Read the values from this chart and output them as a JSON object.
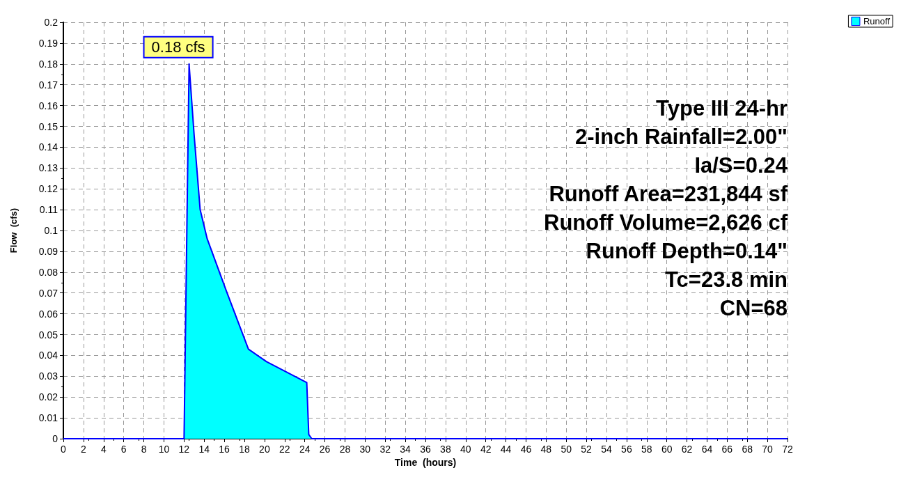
{
  "chart_data": {
    "type": "area",
    "xlabel": "Time  (hours)",
    "ylabel": "Flow  (cfs)",
    "x": [
      0,
      12,
      12.5,
      13.0,
      13.6,
      14.3,
      16.2,
      18.4,
      20.2,
      24.2,
      24.4,
      24.7,
      72
    ],
    "series": [
      {
        "name": "Runoff",
        "color": "#00ffff",
        "values": [
          0,
          0,
          0.18,
          0.146,
          0.11,
          0.096,
          0.071,
          0.043,
          0.037,
          0.027,
          0.002,
          0,
          0
        ]
      }
    ],
    "xlim": [
      0,
      72
    ],
    "xticks": [
      0,
      2,
      4,
      6,
      8,
      10,
      12,
      14,
      16,
      18,
      20,
      22,
      24,
      26,
      28,
      30,
      32,
      34,
      36,
      38,
      40,
      42,
      44,
      46,
      48,
      50,
      52,
      54,
      56,
      58,
      60,
      62,
      64,
      66,
      68,
      70,
      72
    ],
    "ylim": [
      0,
      0.2
    ],
    "yticks": [
      0,
      0.01,
      0.02,
      0.03,
      0.04,
      0.05,
      0.06,
      0.07,
      0.08,
      0.09,
      0.1,
      0.11,
      0.12,
      0.13,
      0.14,
      0.15,
      0.16,
      0.17,
      0.18,
      0.19,
      0.2
    ],
    "grid": true,
    "legend": "top right",
    "marker": "none",
    "line_style": "solid",
    "annotations": [
      {
        "text": "0.18 cfs",
        "x": 12.5,
        "y": 0.18
      },
      "Type III 24-hr",
      "2-inch Rainfall=2.00\"",
      "Ia/S=0.24",
      "Runoff Area=231,844 sf",
      "Runoff Volume=2,626 cf",
      "Runoff Depth=0.14\"",
      "Tc=23.8 min",
      "CN=68"
    ]
  }
}
